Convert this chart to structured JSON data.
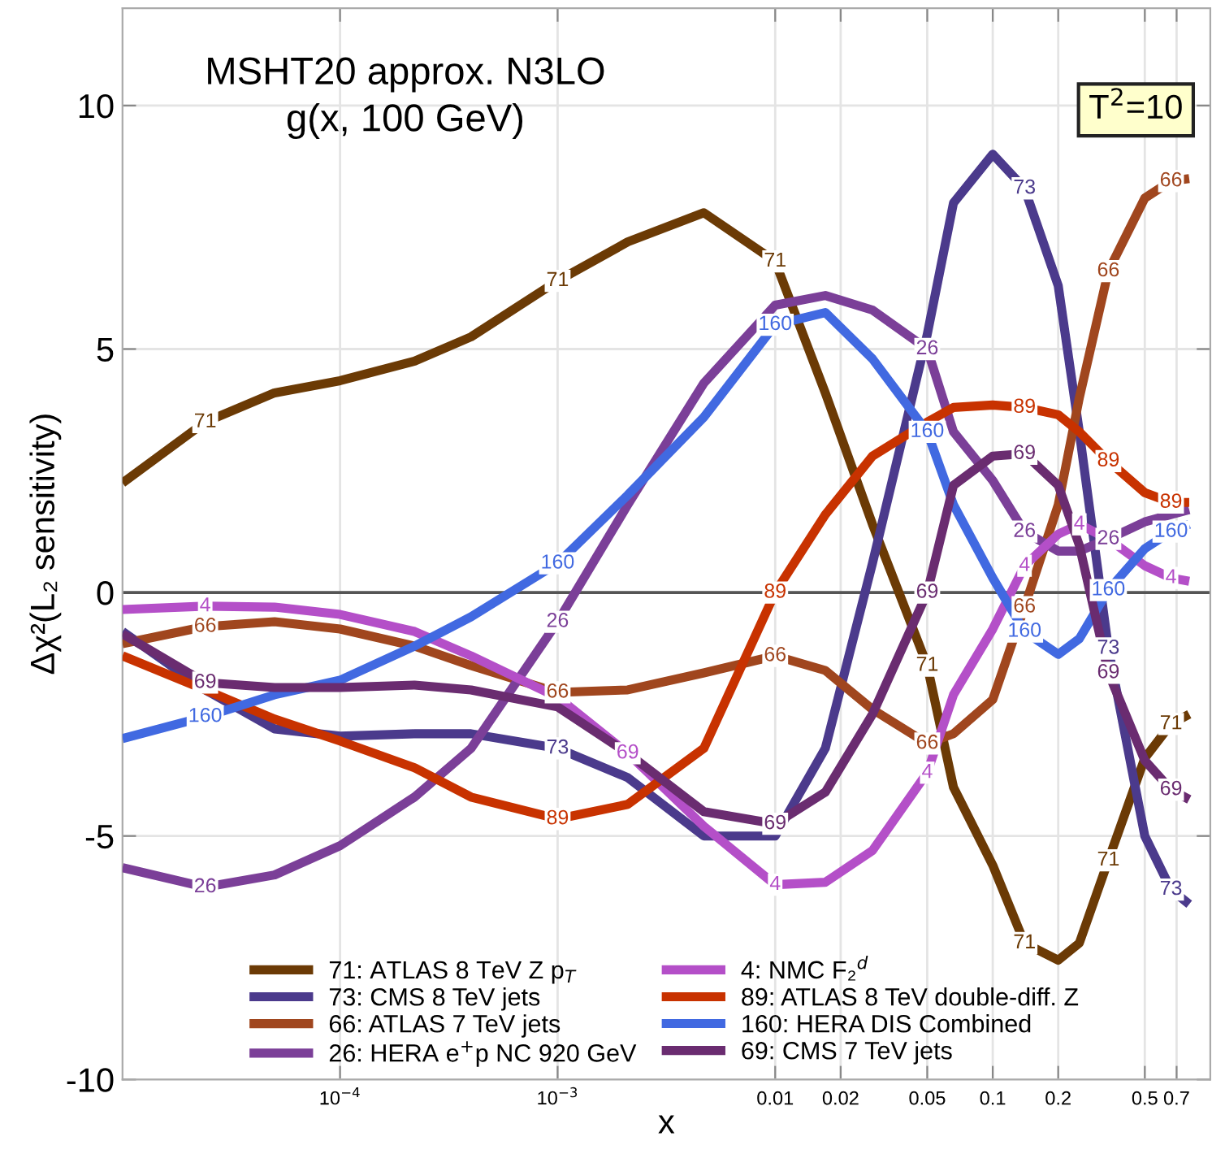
{
  "chart_data": {
    "type": "line",
    "title": "MSHT20 approx. N3LO\ng(x, 100 GeV)",
    "xlabel": "x",
    "ylabel": "Δχ²(L₂ sensitivity)",
    "x": [
      1e-05,
      2.4e-05,
      5e-05,
      0.0001,
      0.00022,
      0.0004,
      0.001,
      0.0021,
      0.0047,
      0.01,
      0.017,
      0.028,
      0.05,
      0.066,
      0.1,
      0.14,
      0.2,
      0.25,
      0.34,
      0.5,
      0.66,
      0.8
    ],
    "series": [
      {
        "name": "71: ATLAS 8 TeV Z p$_{T}$",
        "color": "#6b3a05",
        "values": [
          2.25,
          3.5,
          4.1,
          4.35,
          4.75,
          5.25,
          6.4,
          7.2,
          7.8,
          6.8,
          4.1,
          1.4,
          -1.5,
          -4.0,
          -5.6,
          -7.2,
          -7.55,
          -7.2,
          -5.5,
          -3.4,
          -2.7,
          -2.5
        ]
      },
      {
        "name": "73: CMS 8 TeV jets",
        "color": "#4b3a8c",
        "values": [
          -0.8,
          -2.0,
          -2.8,
          -2.95,
          -2.9,
          -2.9,
          -3.2,
          -3.8,
          -5.0,
          -5.0,
          -3.2,
          0.6,
          5.3,
          8.0,
          9.0,
          8.3,
          6.3,
          3.3,
          -1.15,
          -5.0,
          -6.1,
          -6.4
        ]
      },
      {
        "name": "66: ATLAS 7 TeV jets",
        "color": "#a0461e",
        "values": [
          -1.05,
          -0.7,
          -0.6,
          -0.75,
          -1.1,
          -1.5,
          -2.05,
          -2.0,
          -1.65,
          -1.3,
          -1.6,
          -2.4,
          -3.1,
          -2.9,
          -2.2,
          -0.3,
          1.8,
          4.0,
          6.6,
          8.1,
          8.45,
          8.5
        ]
      },
      {
        "name": "26: HERA e$^{+}$p NC 920 GeV",
        "color": "#7b3f98",
        "values": [
          -5.65,
          -6.05,
          -5.8,
          -5.2,
          -4.2,
          -3.2,
          -0.6,
          1.8,
          4.3,
          5.9,
          6.1,
          5.8,
          5.0,
          3.3,
          2.3,
          1.25,
          0.85,
          0.85,
          1.1,
          1.45,
          1.6,
          1.7
        ]
      },
      {
        "name": "4: NMC F₂$^{d}$",
        "color": "#b44fc8",
        "values": [
          -0.35,
          -0.28,
          -0.3,
          -0.45,
          -0.8,
          -1.3,
          -2.15,
          -3.3,
          -4.8,
          -6.0,
          -5.95,
          -5.3,
          -3.7,
          -2.1,
          -0.75,
          0.55,
          1.2,
          1.4,
          1.1,
          0.55,
          0.3,
          0.23
        ]
      },
      {
        "name": "89: ATLAS 8 TeV double-diff. Z",
        "color": "#c83200",
        "values": [
          -1.3,
          -2.0,
          -2.6,
          -3.05,
          -3.6,
          -4.2,
          -4.65,
          -4.35,
          -3.2,
          0,
          1.6,
          2.8,
          3.5,
          3.8,
          3.85,
          3.8,
          3.65,
          3.3,
          2.7,
          2.05,
          1.85,
          1.85
        ]
      },
      {
        "name": "160: HERA DIS Combined",
        "color": "#4169e1",
        "values": [
          -3.0,
          -2.55,
          -2.1,
          -1.8,
          -1.1,
          -0.5,
          0.6,
          2.0,
          3.6,
          5.5,
          5.75,
          4.8,
          3.3,
          1.8,
          0.3,
          -0.8,
          -1.27,
          -0.95,
          0.05,
          0.9,
          1.25,
          1.4
        ]
      },
      {
        "name": "69: CMS 7 TeV jets",
        "color": "#6a2c70",
        "values": [
          -0.85,
          -1.85,
          -1.95,
          -1.95,
          -1.9,
          -2.0,
          -2.35,
          -3.3,
          -4.5,
          -4.75,
          -4.1,
          -2.5,
          0.0,
          2.2,
          2.8,
          2.85,
          2.2,
          0.97,
          -1.65,
          -3.45,
          -4.05,
          -4.25
        ]
      }
    ],
    "xlim": [
      1e-05,
      1
    ],
    "ylim": [
      -10,
      12
    ],
    "xticks": [
      {
        "value": 0.0001,
        "label": "10$^{−4}$"
      },
      {
        "value": 0.001,
        "label": "10$^{−3}$"
      },
      0.01,
      0.02,
      0.05,
      0.1,
      0.2,
      0.5,
      0.7
    ],
    "yticks": [
      -10,
      -5,
      0,
      5,
      10
    ],
    "log": "x",
    "grid": true,
    "legend": "bottom",
    "line_style": "solid",
    "marker": "none",
    "ref_lines": [
      {
        "axis": "y",
        "value": 0,
        "color": "#555555"
      }
    ],
    "annotations": [
      "T$^{2}$=10",
      {
        "text": "71",
        "x": 2.4e-05,
        "y": 3.5
      },
      {
        "text": "71",
        "x": 0.001,
        "y": 6.4
      },
      {
        "text": "71",
        "x": 0.01,
        "y": 6.8
      },
      {
        "text": "71",
        "x": 0.05,
        "y": -1.5
      },
      {
        "text": "71",
        "x": 0.14,
        "y": -7.2
      },
      {
        "text": "71",
        "x": 0.34,
        "y": -5.5
      },
      {
        "text": "71",
        "x": 0.66,
        "y": -2.7
      },
      {
        "text": "73",
        "x": 0.001,
        "y": -3.2
      },
      {
        "text": "73",
        "x": 0.14,
        "y": 8.3
      },
      {
        "text": "73",
        "x": 0.34,
        "y": -1.15
      },
      {
        "text": "73",
        "x": 0.66,
        "y": -6.1
      },
      {
        "text": "66",
        "x": 2.4e-05,
        "y": -0.7
      },
      {
        "text": "66",
        "x": 0.001,
        "y": -2.05
      },
      {
        "text": "66",
        "x": 0.01,
        "y": -1.3
      },
      {
        "text": "66",
        "x": 0.05,
        "y": -3.1
      },
      {
        "text": "66",
        "x": 0.14,
        "y": -0.3
      },
      {
        "text": "66",
        "x": 0.34,
        "y": 6.6
      },
      {
        "text": "66",
        "x": 0.66,
        "y": 8.45
      },
      {
        "text": "26",
        "x": 2.4e-05,
        "y": -6.05
      },
      {
        "text": "26",
        "x": 0.001,
        "y": -0.6
      },
      {
        "text": "26",
        "x": 0.05,
        "y": 5.0
      },
      {
        "text": "26",
        "x": 0.14,
        "y": 1.25
      },
      {
        "text": "26",
        "x": 0.34,
        "y": 1.1
      },
      {
        "text": "4",
        "x": 2.4e-05,
        "y": -0.28
      },
      {
        "text": "4",
        "x": 0.01,
        "y": -6.0
      },
      {
        "text": "4",
        "x": 0.05,
        "y": -3.7
      },
      {
        "text": "4",
        "x": 0.14,
        "y": 0.55
      },
      {
        "text": "4",
        "x": 0.25,
        "y": 1.4
      },
      {
        "text": "4",
        "x": 0.66,
        "y": 0.3
      },
      {
        "text": "89",
        "x": 0.001,
        "y": -4.65
      },
      {
        "text": "89",
        "x": 0.01,
        "y": 0
      },
      {
        "text": "89",
        "x": 0.14,
        "y": 3.8
      },
      {
        "text": "89",
        "x": 0.34,
        "y": 2.7
      },
      {
        "text": "89",
        "x": 0.66,
        "y": 1.85
      },
      {
        "text": "160",
        "x": 2.4e-05,
        "y": -2.55
      },
      {
        "text": "160",
        "x": 0.001,
        "y": 0.6
      },
      {
        "text": "160",
        "x": 0.01,
        "y": 5.5
      },
      {
        "text": "160",
        "x": 0.05,
        "y": 3.3
      },
      {
        "text": "160",
        "x": 0.14,
        "y": -0.8
      },
      {
        "text": "160",
        "x": 0.34,
        "y": 0.05
      },
      {
        "text": "160",
        "x": 0.66,
        "y": 1.25
      },
      {
        "text": "69",
        "x": 2.4e-05,
        "y": -1.85
      },
      {
        "text": "69",
        "x": 0.0021,
        "y": -3.3
      },
      {
        "text": "69",
        "x": 0.01,
        "y": -4.75
      },
      {
        "text": "69",
        "x": 0.05,
        "y": 0.0
      },
      {
        "text": "69",
        "x": 0.14,
        "y": 2.85
      },
      {
        "text": "69",
        "x": 0.34,
        "y": -1.65
      },
      {
        "text": "69",
        "x": 0.66,
        "y": -4.05
      }
    ]
  }
}
